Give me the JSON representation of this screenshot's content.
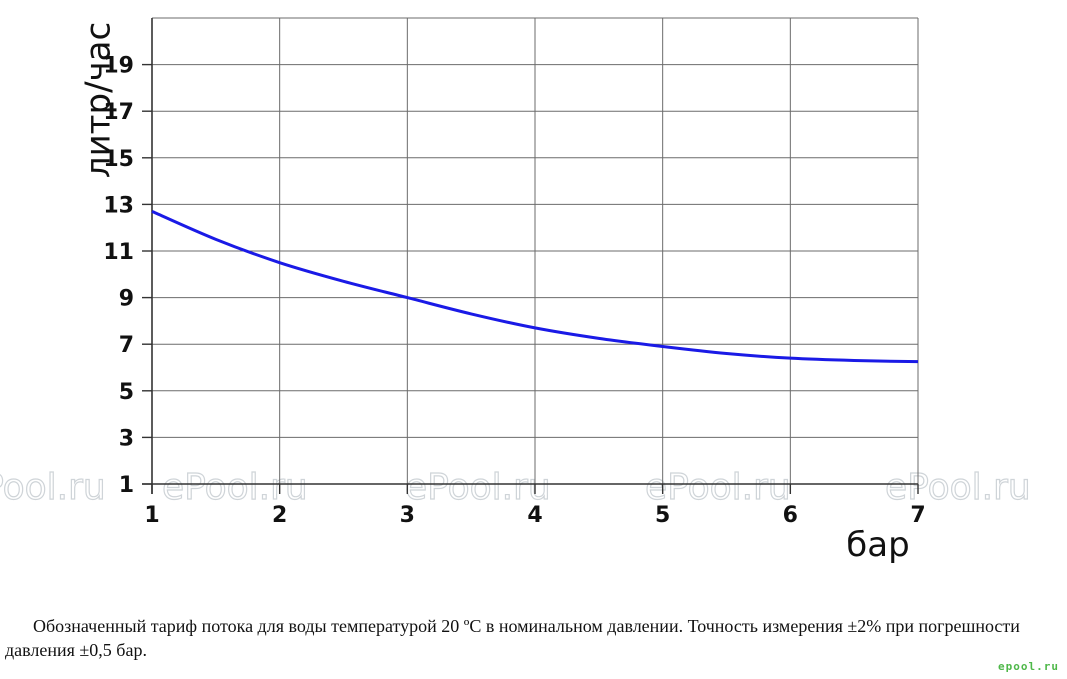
{
  "chart_data": {
    "type": "line",
    "xlabel": "бар",
    "ylabel": "литр/час",
    "xlim": [
      1,
      7
    ],
    "ylim": [
      1,
      21
    ],
    "x_ticks": [
      1,
      2,
      3,
      4,
      5,
      6,
      7
    ],
    "y_ticks": [
      1,
      3,
      5,
      7,
      9,
      11,
      13,
      15,
      17,
      19
    ],
    "grid": true,
    "series": [
      {
        "color": "#1a1ae6",
        "x": [
          1,
          1.5,
          2,
          2.5,
          3,
          3.5,
          4,
          4.5,
          5,
          5.5,
          6,
          6.5,
          7
        ],
        "y": [
          12.7,
          11.5,
          10.5,
          9.7,
          9.0,
          8.3,
          7.7,
          7.25,
          6.9,
          6.6,
          6.4,
          6.3,
          6.25
        ]
      }
    ]
  },
  "watermark": "ePool.ru",
  "caption": "Обозначенный тариф потока для воды температурой 20 ºC в номинальном давлении. Точность измерения ±2% при погрешности давления ±0,5 бар.",
  "logo_text": "epool.ru"
}
